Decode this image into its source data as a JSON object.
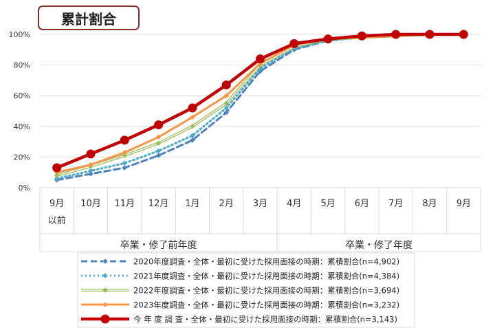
{
  "chart_data": {
    "type": "line",
    "title": "累計割合",
    "categories": [
      "9月\n以前",
      "10月",
      "11月",
      "12月",
      "1月",
      "2月",
      "3月",
      "4月",
      "5月",
      "6月",
      "7月",
      "8月",
      "9月"
    ],
    "period_groups": [
      {
        "label": "卒業・修了前年度",
        "span": [
          0,
          6
        ]
      },
      {
        "label": "卒業・修了年度",
        "span": [
          7,
          12
        ]
      }
    ],
    "ylim": [
      0,
      100
    ],
    "yticks": [
      "0%",
      "20%",
      "40%",
      "60%",
      "80%",
      "100%"
    ],
    "ytick_values": [
      0,
      20,
      40,
      60,
      80,
      100
    ],
    "grid": true,
    "legend_position": "bottom",
    "series": [
      {
        "name": "2020年度調査・全体・最初に受けた採用面接の時期：累積割合(n=4,902)",
        "color": "#4f81bd",
        "dash": "dashed",
        "marker": "diamond",
        "values": [
          5,
          9,
          13,
          21,
          31,
          49,
          76,
          90,
          96,
          98,
          99,
          100,
          100
        ]
      },
      {
        "name": "2021年度調査・全体・最初に受けた採用面接の時期：累積割合(n=4,384)",
        "color": "#4bacc6",
        "dash": "dotted",
        "marker": "diamond",
        "values": [
          6,
          11,
          16,
          24,
          34,
          52,
          78,
          91,
          96,
          98,
          99,
          100,
          100
        ]
      },
      {
        "name": "2022年度調査・全体・最初に受けた採用面接の時期：累積割合(n=3,694)",
        "color": "#9bbb59",
        "dash": "double",
        "marker": "diamond",
        "values": [
          8,
          14,
          21,
          29,
          40,
          55,
          80,
          92,
          97,
          98,
          99,
          100,
          100
        ]
      },
      {
        "name": "2023年度調査・全体・最初に受けた採用面接の時期：累積割合(n=3,232)",
        "color": "#f79646",
        "dash": "solid",
        "marker": "diamond",
        "values": [
          10,
          15,
          23,
          33,
          46,
          60,
          81,
          93,
          97,
          98,
          99,
          100,
          100
        ]
      },
      {
        "name": "今 年 度 調 査・全体・最初に受けた採用面接の時期：累積割合(n=3,143)",
        "color": "#c00000",
        "dash": "solid-thick",
        "marker": "circle",
        "values": [
          13,
          22,
          31,
          41,
          52,
          67,
          84,
          94,
          97,
          99,
          100,
          100,
          100
        ]
      }
    ]
  }
}
